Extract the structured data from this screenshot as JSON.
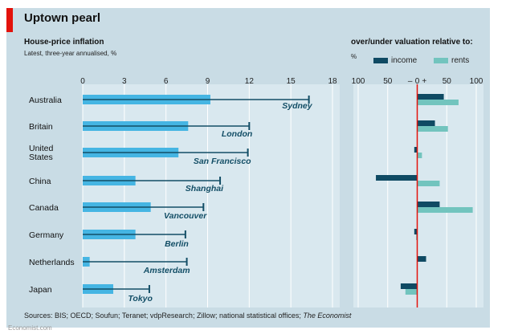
{
  "title": "Uptown pearl",
  "left": {
    "subtitle": "House-price inflation",
    "note": "Latest, three-year annualised, %"
  },
  "right": {
    "subtitle": "over/under valuation relative to:",
    "unit": "%"
  },
  "legend": [
    {
      "name": "income",
      "color": "#0f4a63"
    },
    {
      "name": "rents",
      "color": "#72c4be"
    }
  ],
  "sources_prefix": "Sources: BIS; OECD; Soufun; Teranet; vdpResearch; Zillow; national statistical offices; ",
  "sources_italic": "The Economist",
  "footer": "Economist.com",
  "colors": {
    "bar": "#45b5e3",
    "city_line": "#134e66",
    "zero_line": "#e3120b"
  },
  "chart_data": [
    {
      "type": "bar",
      "title": "House-price inflation",
      "subtitle": "Latest, three-year annualised, %",
      "xlim": [
        0,
        18
      ],
      "ticks": [
        0,
        3,
        6,
        9,
        12,
        15,
        18
      ],
      "categories": [
        "Australia",
        "Britain",
        "United States",
        "China",
        "Canada",
        "Germany",
        "Netherlands",
        "Japan"
      ],
      "category_lines": [
        [
          "Australia"
        ],
        [
          "Britain"
        ],
        [
          "United",
          "States"
        ],
        [
          "China"
        ],
        [
          "Canada"
        ],
        [
          "Germany"
        ],
        [
          "Netherlands"
        ],
        [
          "Japan"
        ]
      ],
      "series": [
        {
          "name": "country",
          "values": [
            9.2,
            7.6,
            6.9,
            3.8,
            4.9,
            3.8,
            0.5,
            2.2
          ]
        },
        {
          "name": "city",
          "labels": [
            "Sydney",
            "London",
            "San Francisco",
            "Shanghai",
            "Vancouver",
            "Berlin",
            "Amsterdam",
            "Tokyo"
          ],
          "values": [
            16.3,
            12.0,
            11.9,
            9.9,
            8.7,
            7.4,
            7.5,
            4.8
          ]
        }
      ]
    },
    {
      "type": "bar",
      "title": "over/under valuation relative to:",
      "xlim": [
        -100,
        100
      ],
      "ticks": [
        -100,
        -50,
        0,
        50,
        100
      ],
      "tick_labels": [
        "100",
        "50",
        "–",
        "0",
        "+",
        "50",
        "100"
      ],
      "categories": [
        "Australia",
        "Britain",
        "United States",
        "China",
        "Canada",
        "Germany",
        "Netherlands",
        "Japan"
      ],
      "series": [
        {
          "name": "income",
          "values": [
            45,
            30,
            -5,
            -70,
            38,
            -5,
            15,
            -28
          ]
        },
        {
          "name": "rents",
          "values": [
            70,
            52,
            8,
            38,
            94,
            -2,
            0,
            -20
          ]
        }
      ]
    }
  ]
}
